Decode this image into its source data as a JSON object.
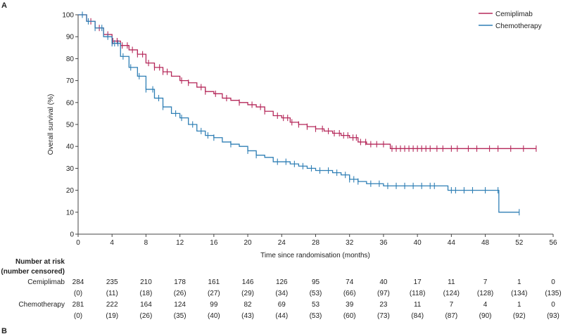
{
  "chart_data": {
    "type": "line",
    "panel_label": "A",
    "next_panel_label": "B",
    "xlabel": "Time since randomisation (months)",
    "ylabel": "Overall survival (%)",
    "xlim": [
      0,
      56
    ],
    "ylim": [
      0,
      100
    ],
    "xticks": [
      0,
      4,
      8,
      12,
      16,
      20,
      24,
      28,
      32,
      36,
      40,
      44,
      48,
      52,
      56
    ],
    "yticks": [
      0,
      10,
      20,
      30,
      40,
      50,
      60,
      70,
      80,
      90,
      100
    ],
    "legend_position": "top-right",
    "series": [
      {
        "name": "Cemiplimab",
        "color": "#b5285a",
        "points": [
          [
            0,
            100
          ],
          [
            1,
            97
          ],
          [
            2,
            94
          ],
          [
            3,
            91
          ],
          [
            4,
            88
          ],
          [
            5,
            86
          ],
          [
            6,
            84
          ],
          [
            7,
            82
          ],
          [
            8,
            78
          ],
          [
            9,
            76
          ],
          [
            10,
            74
          ],
          [
            11,
            72
          ],
          [
            12,
            70
          ],
          [
            13,
            69
          ],
          [
            14,
            67
          ],
          [
            15,
            65
          ],
          [
            16,
            64
          ],
          [
            17,
            62
          ],
          [
            18,
            61
          ],
          [
            19,
            60
          ],
          [
            20,
            59
          ],
          [
            21,
            58
          ],
          [
            22,
            56
          ],
          [
            23,
            54
          ],
          [
            24,
            53
          ],
          [
            25,
            51
          ],
          [
            26,
            50
          ],
          [
            27,
            49
          ],
          [
            28,
            48
          ],
          [
            29,
            47
          ],
          [
            30,
            46
          ],
          [
            31,
            45
          ],
          [
            32,
            44
          ],
          [
            33,
            42
          ],
          [
            34,
            41
          ],
          [
            35,
            41
          ],
          [
            36,
            41
          ],
          [
            36.8,
            39
          ],
          [
            38,
            39
          ],
          [
            40,
            39
          ],
          [
            44,
            39
          ],
          [
            48,
            39
          ],
          [
            52,
            39
          ],
          [
            54,
            39
          ]
        ],
        "censor_times": [
          1.5,
          2.5,
          3.5,
          4.1,
          4.6,
          5.2,
          5.8,
          6.4,
          7,
          7.6,
          8.3,
          9,
          9.6,
          10,
          10.5,
          12.2,
          13,
          14.5,
          15,
          16.2,
          17.5,
          19,
          20.5,
          21.5,
          22,
          23.5,
          24.2,
          24.7,
          25.2,
          26,
          27,
          28,
          28.8,
          29.5,
          30.2,
          30.8,
          31.3,
          31.8,
          32.4,
          32.8,
          33.3,
          33.9,
          34.5,
          35.2,
          36,
          37,
          37.5,
          38,
          38.5,
          39,
          39.5,
          40,
          40.5,
          41,
          41.5,
          42.3,
          43,
          44,
          44.7,
          46,
          47,
          48.5,
          49.5,
          51,
          52.5,
          54
        ]
      },
      {
        "name": "Chemotherapy",
        "color": "#2f7fb5",
        "points": [
          [
            0,
            100
          ],
          [
            1,
            97
          ],
          [
            2,
            94
          ],
          [
            3,
            90
          ],
          [
            4,
            87
          ],
          [
            5,
            81
          ],
          [
            6,
            76
          ],
          [
            7,
            72
          ],
          [
            8,
            66
          ],
          [
            9,
            62
          ],
          [
            10,
            58
          ],
          [
            11,
            55
          ],
          [
            12,
            53
          ],
          [
            13,
            50
          ],
          [
            14,
            47
          ],
          [
            15,
            45
          ],
          [
            16,
            44
          ],
          [
            17,
            42
          ],
          [
            18,
            41
          ],
          [
            19,
            40
          ],
          [
            20,
            38
          ],
          [
            21,
            36
          ],
          [
            22,
            35
          ],
          [
            23,
            33
          ],
          [
            24,
            33
          ],
          [
            25,
            32
          ],
          [
            26,
            31
          ],
          [
            27,
            30
          ],
          [
            28,
            29
          ],
          [
            29,
            29
          ],
          [
            30,
            28
          ],
          [
            31,
            27
          ],
          [
            32,
            25
          ],
          [
            33,
            24
          ],
          [
            34,
            23
          ],
          [
            35,
            23
          ],
          [
            36,
            22
          ],
          [
            38,
            22
          ],
          [
            40,
            22
          ],
          [
            42,
            22
          ],
          [
            43.5,
            22
          ],
          [
            43.6,
            20
          ],
          [
            45,
            20
          ],
          [
            48,
            20
          ],
          [
            49.5,
            20
          ],
          [
            49.6,
            10
          ],
          [
            52,
            10
          ]
        ],
        "censor_times": [
          0.5,
          1.2,
          2,
          2.8,
          3.5,
          4,
          4.3,
          4.7,
          5.3,
          6.2,
          7.2,
          8,
          8.8,
          9.5,
          10,
          11.5,
          12.2,
          13.5,
          14.5,
          15.3,
          16,
          18,
          20,
          21,
          23.5,
          24.5,
          25.5,
          26.5,
          27.5,
          28.5,
          29.5,
          30.5,
          31.5,
          32,
          32.5,
          33,
          34.5,
          35.5,
          36.5,
          37.5,
          38.5,
          39.5,
          40.5,
          41.5,
          42,
          44,
          44.5,
          45.5,
          46.5,
          48,
          49.5,
          52
        ]
      }
    ],
    "risk_table": {
      "heading_line1": "Number at risk",
      "heading_line2": "(number censored)",
      "rows": [
        {
          "name": "Cemiplimab",
          "at_risk": [
            "284",
            "235",
            "210",
            "178",
            "161",
            "146",
            "126",
            "95",
            "74",
            "40",
            "17",
            "11",
            "7",
            "1",
            "0"
          ],
          "censored": [
            "(0)",
            "(11)",
            "(18)",
            "(26)",
            "(27)",
            "(29)",
            "(34)",
            "(53)",
            "(66)",
            "(97)",
            "(118)",
            "(124)",
            "(128)",
            "(134)",
            "(135)"
          ]
        },
        {
          "name": "Chemotherapy",
          "at_risk": [
            "281",
            "222",
            "164",
            "124",
            "99",
            "82",
            "69",
            "53",
            "39",
            "23",
            "11",
            "7",
            "4",
            "1",
            "0"
          ],
          "censored": [
            "(0)",
            "(19)",
            "(26)",
            "(35)",
            "(40)",
            "(43)",
            "(44)",
            "(53)",
            "(60)",
            "(73)",
            "(84)",
            "(87)",
            "(90)",
            "(92)",
            "(93)"
          ]
        }
      ]
    }
  }
}
